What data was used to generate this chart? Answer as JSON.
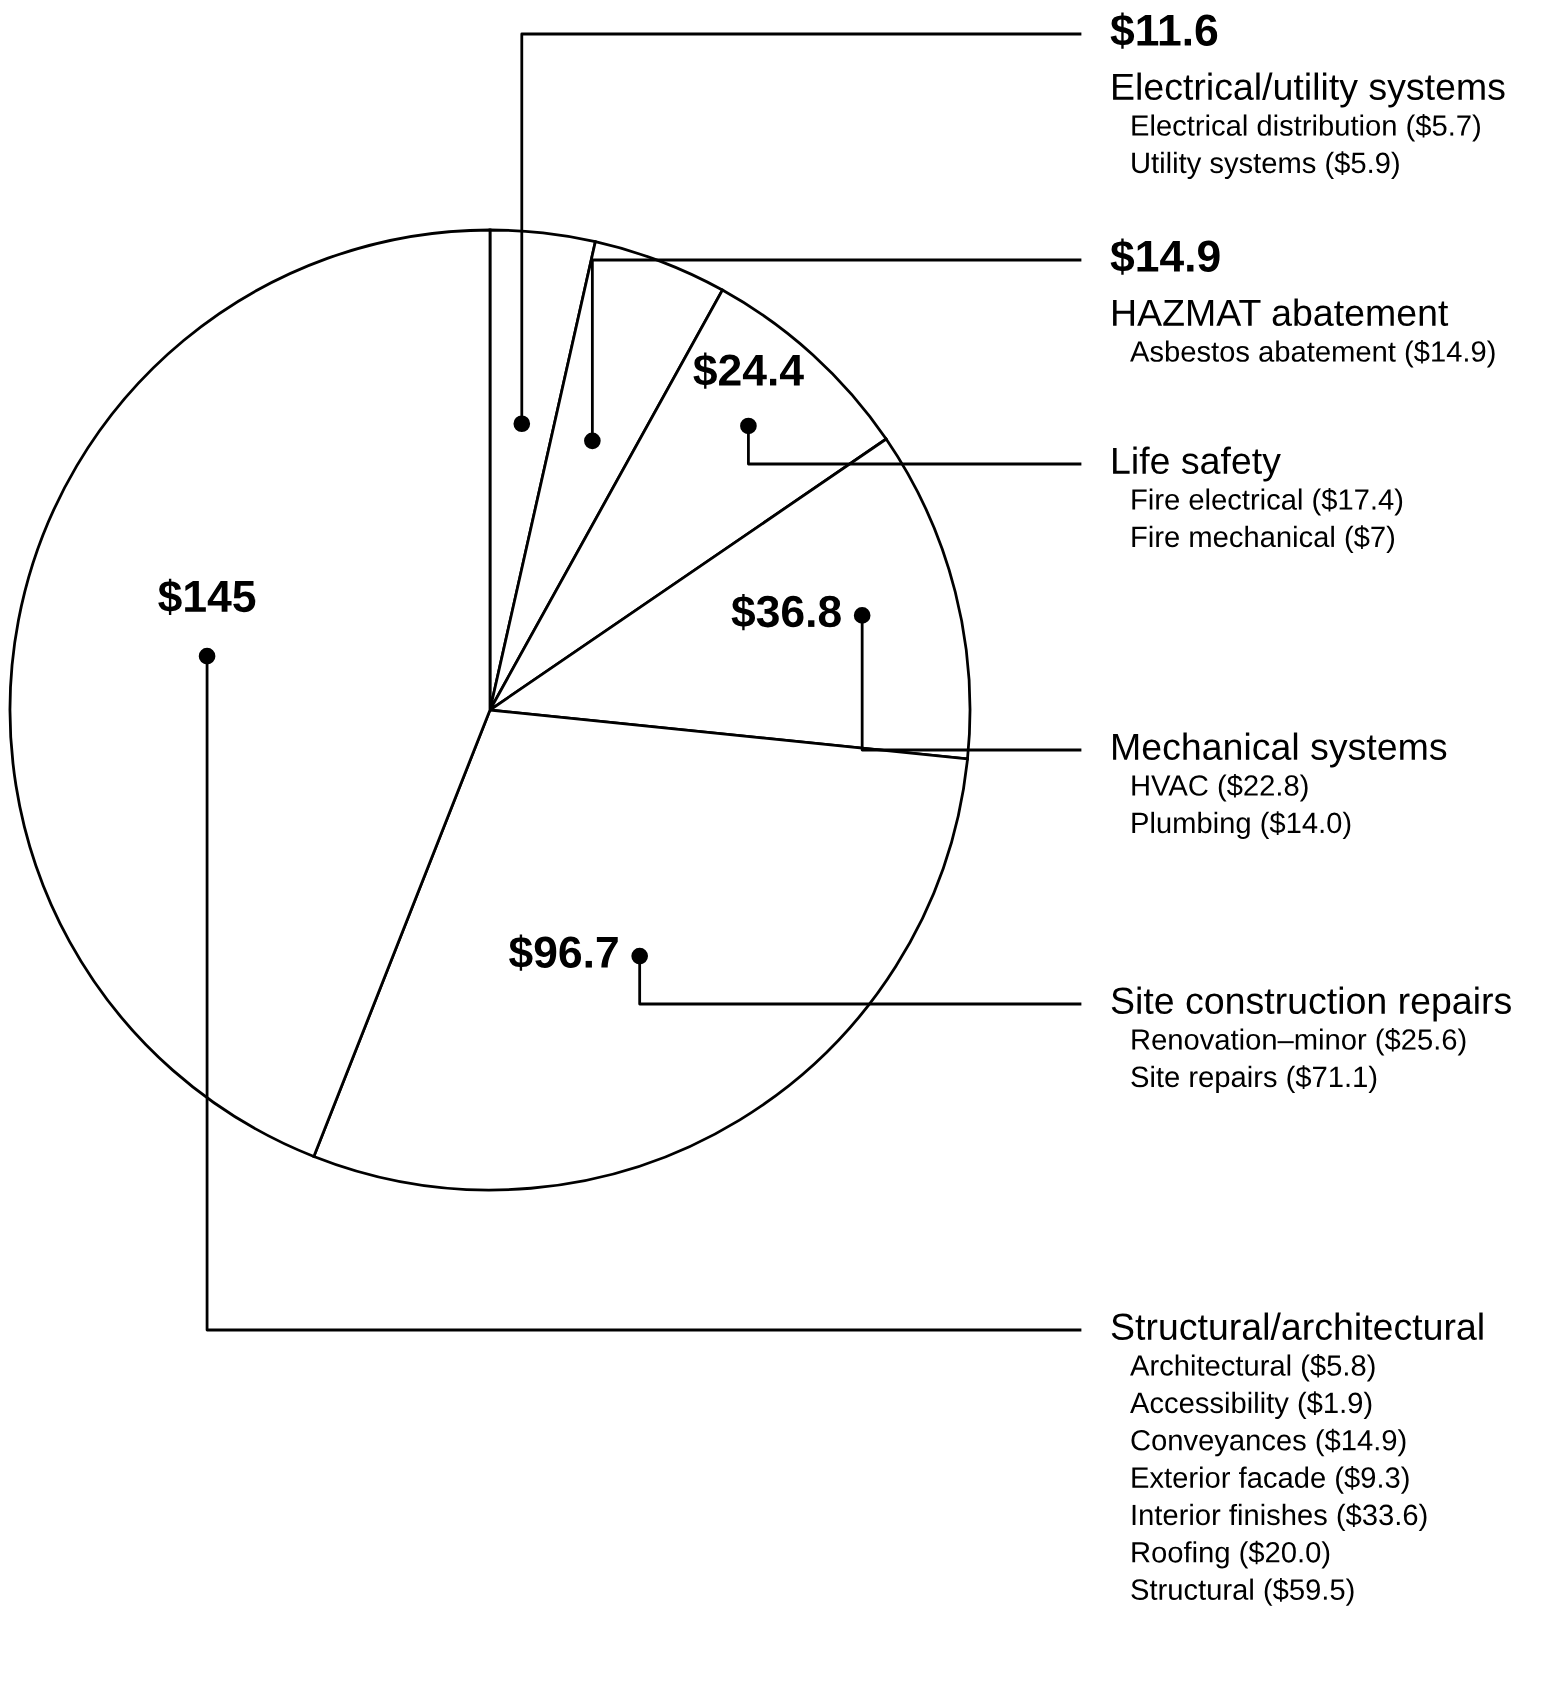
{
  "chart_data": {
    "type": "pie",
    "categories": [
      "Electrical/utility systems",
      "HAZMAT abatement",
      "Life safety",
      "Mechanical systems",
      "Site construction repairs",
      "Structural/architectural"
    ],
    "values": [
      11.6,
      14.9,
      24.4,
      36.8,
      96.7,
      145
    ],
    "value_labels": [
      "$11.6",
      "$14.9",
      "$24.4",
      "$36.8",
      "$96.7",
      "$145"
    ],
    "colors": [
      "#ffffff",
      "#ffffff",
      "#ffffff",
      "#ffffff",
      "#ffffff",
      "#ffffff"
    ],
    "annotations": [
      "Electrical distribution ($5.7)\nUtility systems ($5.9)",
      "Asbestos abatement ($14.9)",
      "Fire electrical ($17.4)\nFire mechanical ($7)",
      "HVAC ($22.8)\nPlumbing ($14.0)",
      "Renovation–minor ($25.6)\nSite repairs ($71.1)",
      "Architectural ($5.8)\nAccessibility ($1.9)\nConveyances ($14.9)\nExterior facade ($9.3)\nInterior finishes ($33.6)\nRoofing ($20.0)\nStructural ($59.5)"
    ]
  }
}
